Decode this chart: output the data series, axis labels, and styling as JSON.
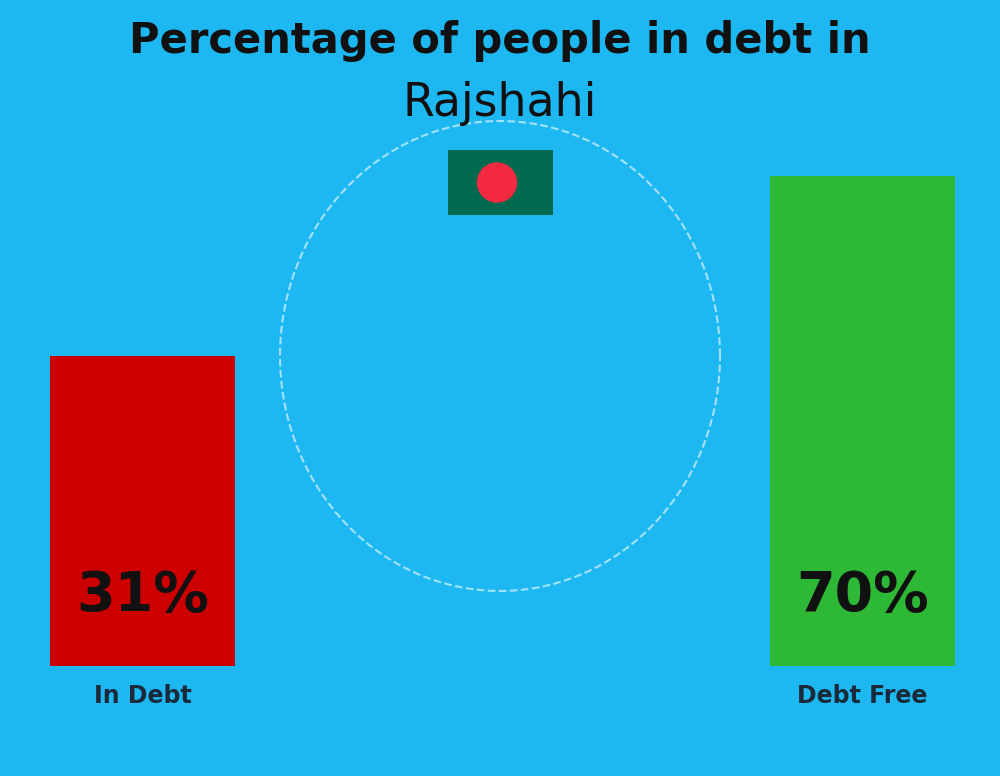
{
  "title_line1": "Percentage of people in debt in",
  "title_line2": "Rajshahi",
  "background_color": "#1DB8F2",
  "bar1_label": "31%",
  "bar1_color": "#CC0000",
  "bar1_text": "In Debt",
  "bar2_label": "70%",
  "bar2_color": "#2DB835",
  "bar2_text": "Debt Free",
  "title_fontsize": 30,
  "subtitle_fontsize": 33,
  "bar_label_fontsize": 40,
  "bar_text_fontsize": 17,
  "title_color": "#111111",
  "bar_label_color": "#111111",
  "bar_text_color": "#1a2a3a",
  "flag_green": "#006A4E",
  "flag_red": "#F42A41"
}
